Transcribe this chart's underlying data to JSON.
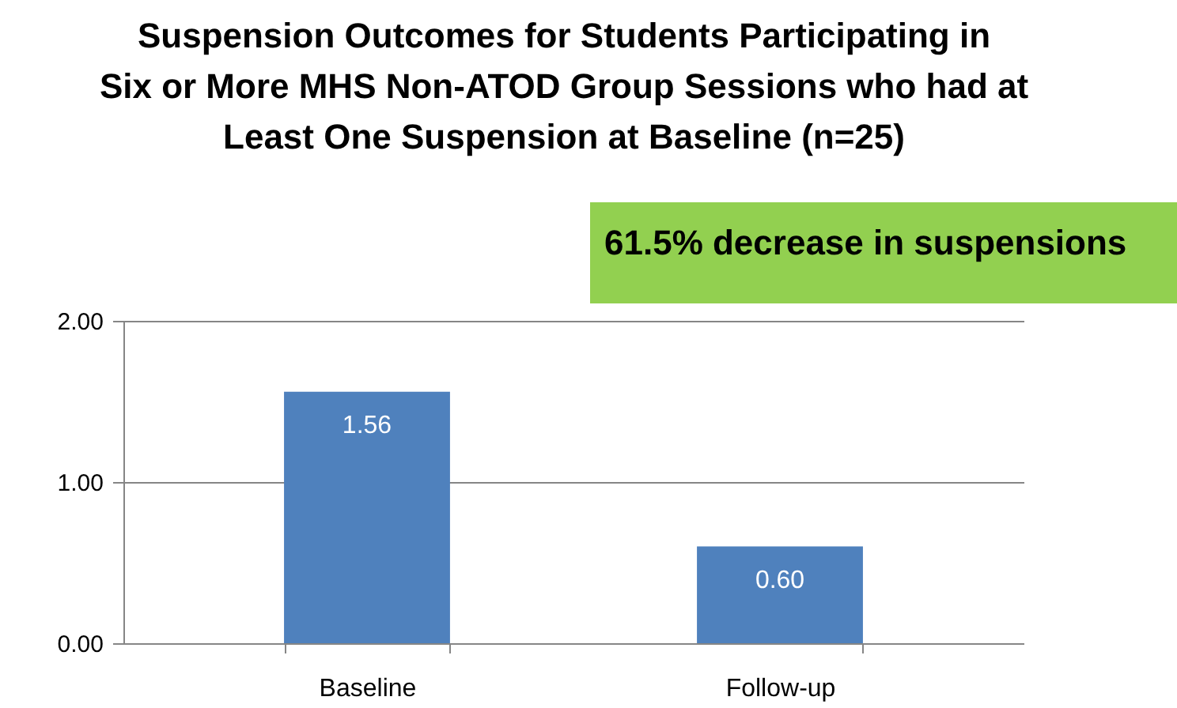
{
  "chart_data": {
    "type": "bar",
    "title": "Suspension Outcomes for Students Participating in Six or More MHS Non-ATOD Group Sessions who had at Least One Suspension at Baseline (n=25)",
    "categories": [
      "Baseline",
      "Follow-up"
    ],
    "values": [
      1.56,
      0.6
    ],
    "value_labels": [
      "1.56",
      "0.60"
    ],
    "color": "#4f81bd",
    "ylim": [
      0,
      2
    ],
    "yticks": [
      {
        "value": 0,
        "label": "0.00"
      },
      {
        "value": 1,
        "label": "1.00"
      },
      {
        "value": 2,
        "label": "2.00"
      }
    ],
    "grid": "y",
    "annotations": [
      "61.5% decrease in suspensions"
    ]
  }
}
